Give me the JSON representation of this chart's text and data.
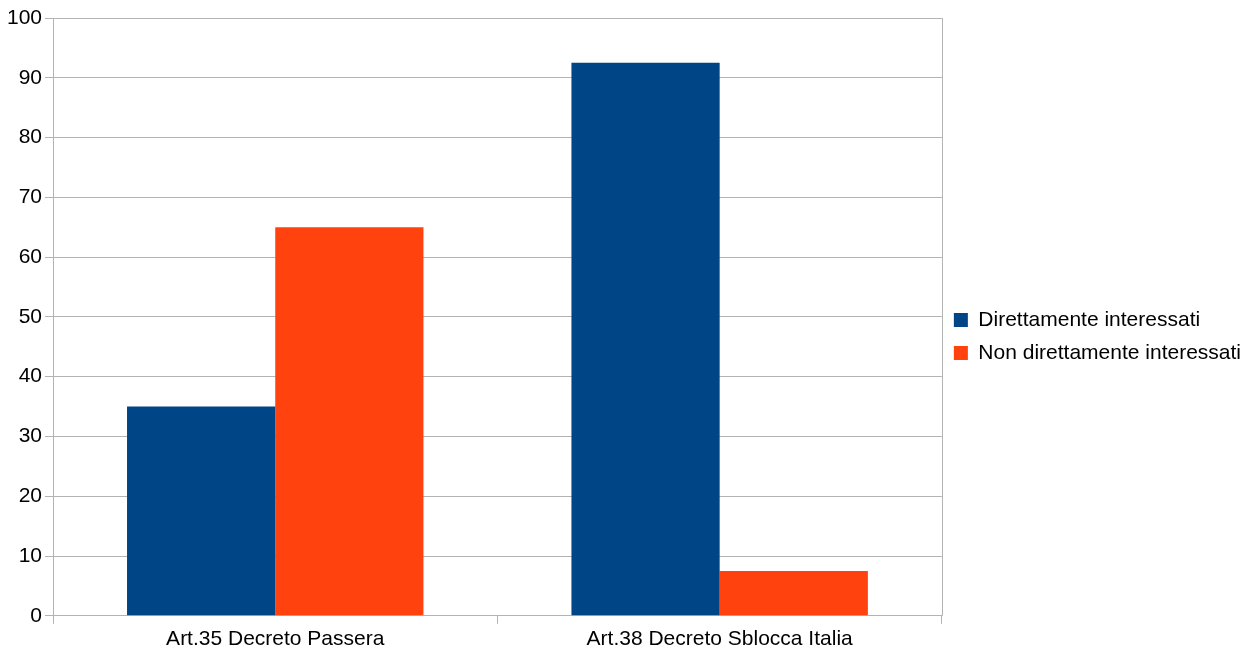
{
  "chart_data": {
    "type": "bar",
    "categories": [
      "Art.35 Decreto Passera",
      "Art.38 Decreto Sblocca Italia"
    ],
    "series": [
      {
        "name": "Direttamente interessati",
        "color": "#004586",
        "values": [
          35,
          92.5
        ]
      },
      {
        "name": "Non direttamente interessati",
        "color": "#ff420e",
        "values": [
          65,
          7.5
        ]
      }
    ],
    "ylim": [
      0,
      100
    ],
    "yticks": [
      0,
      10,
      20,
      30,
      40,
      50,
      60,
      70,
      80,
      90,
      100
    ],
    "grid": "y",
    "legend": "right"
  }
}
